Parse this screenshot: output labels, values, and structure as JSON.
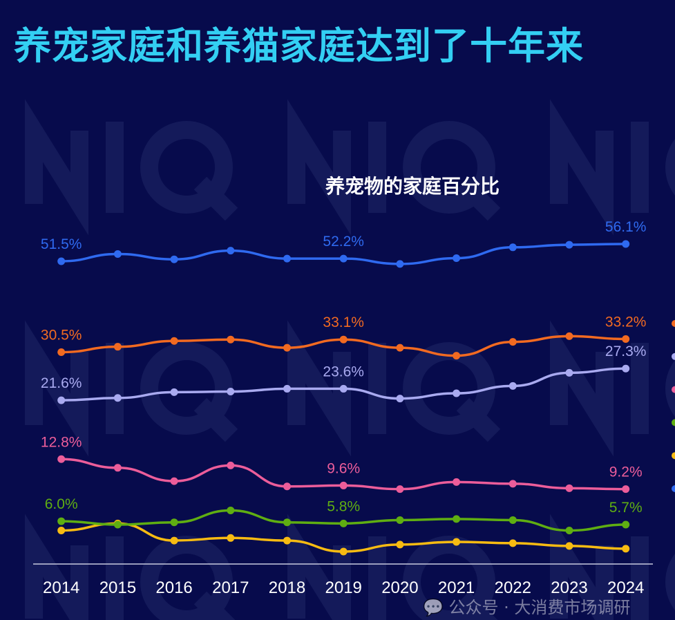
{
  "header": {
    "title": "养宠家庭和养猫家庭达到了十年来"
  },
  "watermark": {
    "text": "公众号 · 大消费市场调研",
    "brand": "NIQ"
  },
  "chart_data": {
    "type": "line",
    "title": "养宠物的家庭百分比",
    "xlabel": "",
    "ylabel": "",
    "categories": [
      "2014",
      "2015",
      "2016",
      "2017",
      "2018",
      "2019",
      "2020",
      "2021",
      "2022",
      "2023",
      "2024"
    ],
    "grid": false,
    "legend": "right (cut off, markers only)",
    "series": [
      {
        "color": "#2f6af0",
        "values": [
          51.5,
          53.4,
          52.0,
          54.3,
          52.2,
          52.2,
          50.8,
          52.3,
          55.2,
          55.9,
          56.1
        ],
        "labels": {
          "0": "51.5%",
          "5": "52.2%",
          "10": "56.1%"
        }
      },
      {
        "color": "#f26a21",
        "values": [
          30.5,
          31.6,
          32.8,
          33.1,
          31.4,
          33.1,
          31.4,
          29.8,
          32.6,
          33.8,
          33.2
        ],
        "labels": {
          "0": "30.5%",
          "5": "33.1%",
          "10": "33.2%"
        }
      },
      {
        "color": "#a9aaf0",
        "values": [
          21.6,
          22.0,
          23.0,
          23.1,
          23.6,
          23.6,
          21.9,
          22.8,
          24.1,
          26.5,
          27.3
        ],
        "labels": {
          "0": "21.6%",
          "5": "23.6%",
          "10": "27.3%"
        }
      },
      {
        "color": "#ec5d9a",
        "values": [
          12.8,
          11.7,
          10.1,
          12.0,
          9.5,
          9.6,
          9.2,
          10.0,
          9.8,
          9.3,
          9.2
        ],
        "labels": {
          "0": "12.8%",
          "5": "9.6%",
          "10": "9.2%"
        }
      },
      {
        "color": "#5fae12",
        "values": [
          6.0,
          5.7,
          5.9,
          7.0,
          5.9,
          5.8,
          6.1,
          6.2,
          6.1,
          5.2,
          5.7
        ],
        "labels": {
          "0": "6.0%",
          "5": "5.8%",
          "10": "5.7%"
        }
      },
      {
        "color": "#f7bb12",
        "values": [
          5.2,
          5.8,
          4.4,
          4.6,
          4.4,
          3.6,
          4.1,
          4.3,
          4.2,
          4.0,
          3.8
        ],
        "labels": {}
      }
    ],
    "legend_order": [
      "#f26a21",
      "#a9aaf0",
      "#ec5d9a",
      "#5fae12",
      "#f7bb12",
      "#2f6af0"
    ]
  }
}
